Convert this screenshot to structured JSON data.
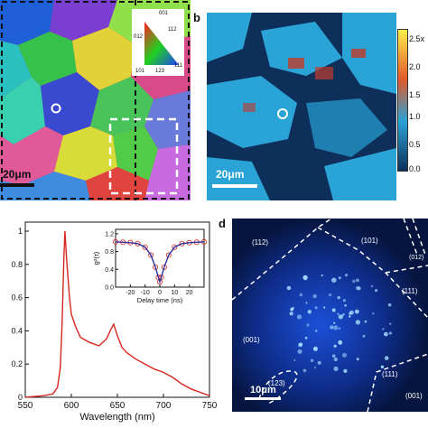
{
  "figure": {
    "panel_letters": {
      "b": "b",
      "d": "d"
    }
  },
  "panel_a": {
    "scale_bar": "20μm",
    "ipf_key": {
      "top": "001",
      "left": "012",
      "right": "112",
      "bottom_left": "101",
      "bottom_mid": "123",
      "bottom_right": "111"
    }
  },
  "panel_b": {
    "scale_bar": "20μm",
    "colorbar_ticks": [
      "2.5x",
      "2.0",
      "1.5",
      "1.0",
      "0.5",
      "0.0"
    ],
    "colors": {
      "background": "#0d2f5a",
      "grain": "#2aa3d6",
      "hot": "#c2392b"
    }
  },
  "panel_c": {
    "xlabel": "Wavelength (nm)",
    "x_ticks": [
      "550",
      "600",
      "650",
      "700",
      "750"
    ],
    "y_ticks": [
      "0",
      "0.2",
      "0.4",
      "0.6",
      "0.8",
      "1"
    ],
    "inset": {
      "ylabel": "g²(τ)",
      "xlabel": "Delay time (ns)",
      "x_ticks": [
        "-20",
        "-10",
        "0",
        "10",
        "20"
      ],
      "y_ticks": [
        "0.0",
        "0.4",
        "0.8",
        "1.2"
      ]
    },
    "colors": {
      "spectrum": "#d7261e",
      "fit": "#2b2f9e",
      "points": "#d7261e"
    }
  },
  "panel_d": {
    "scale_bar": "10μm",
    "orientations": [
      "(112)",
      "(101)",
      "(012)",
      "(111)",
      "(001)",
      "(123)",
      "(111)",
      "(001)"
    ]
  },
  "chart_data": [
    {
      "type": "line",
      "x": [
        550,
        570,
        580,
        585,
        588,
        590,
        592,
        593,
        595,
        598,
        600,
        605,
        610,
        620,
        630,
        638,
        643,
        646,
        650,
        655,
        660,
        670,
        680,
        690,
        700,
        710,
        720,
        730,
        740,
        750
      ],
      "series": [
        {
          "values": [
            0.0,
            0.01,
            0.02,
            0.06,
            0.18,
            0.45,
            0.85,
            1.0,
            0.82,
            0.6,
            0.5,
            0.42,
            0.36,
            0.33,
            0.31,
            0.35,
            0.41,
            0.44,
            0.37,
            0.3,
            0.27,
            0.23,
            0.2,
            0.17,
            0.15,
            0.12,
            0.08,
            0.05,
            0.03,
            0.01
          ]
        }
      ],
      "xlabel": "Wavelength (nm)",
      "ylabel": "",
      "xlim": [
        550,
        750
      ],
      "ylim": [
        0,
        1
      ]
    },
    {
      "type": "scatter",
      "x": [
        -30,
        -25,
        -20,
        -15,
        -10,
        -6,
        -3,
        -1,
        0,
        1,
        3,
        6,
        10,
        15,
        20,
        25,
        30
      ],
      "series": [
        {
          "values": [
            1.02,
            1.01,
            1.0,
            0.98,
            0.9,
            0.72,
            0.45,
            0.22,
            0.12,
            0.22,
            0.45,
            0.72,
            0.9,
            0.98,
            1.0,
            1.01,
            1.02
          ]
        }
      ],
      "xlabel": "Delay time (ns)",
      "ylabel": "g²(τ)",
      "xlim": [
        -30,
        30
      ],
      "ylim": [
        0,
        1.3
      ]
    }
  ]
}
